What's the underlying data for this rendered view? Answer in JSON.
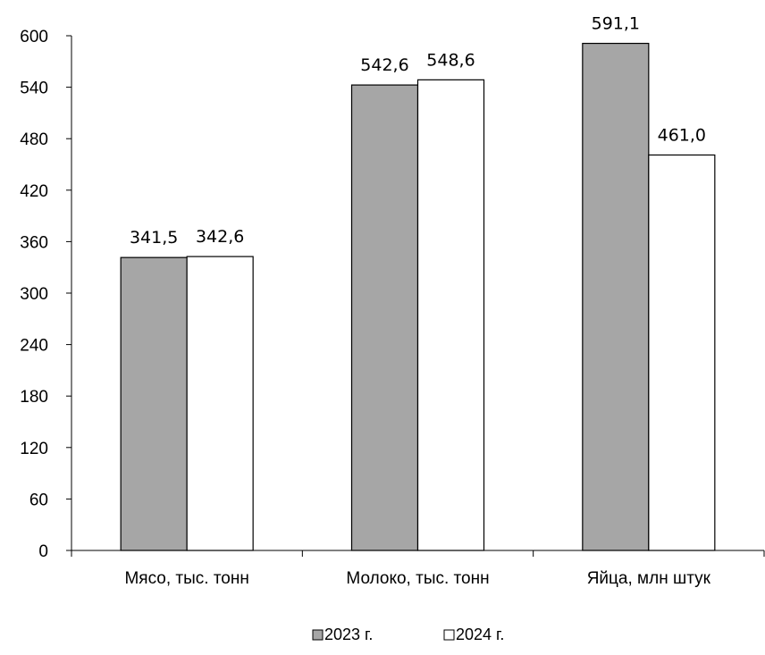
{
  "chart_data": {
    "type": "bar",
    "categories": [
      "Мясо, тыс. тонн",
      "Молоко, тыс. тонн",
      "Яйца, млн штук"
    ],
    "series": [
      {
        "name": "2023 г.",
        "color": "#a6a6a6",
        "values": [
          341.5,
          542.6,
          591.1
        ],
        "labels": [
          "341,5",
          "542,6",
          "591,1"
        ]
      },
      {
        "name": "2024 г.",
        "color": "#ffffff",
        "values": [
          342.6,
          548.6,
          461.0
        ],
        "labels": [
          "342,6",
          "548,6",
          "461,0"
        ]
      }
    ],
    "yticks": [
      "0",
      "60",
      "120",
      "180",
      "240",
      "300",
      "360",
      "420",
      "480",
      "540",
      "600"
    ],
    "ylim": [
      0,
      600
    ],
    "grid": false,
    "legend_position": "bottom"
  }
}
